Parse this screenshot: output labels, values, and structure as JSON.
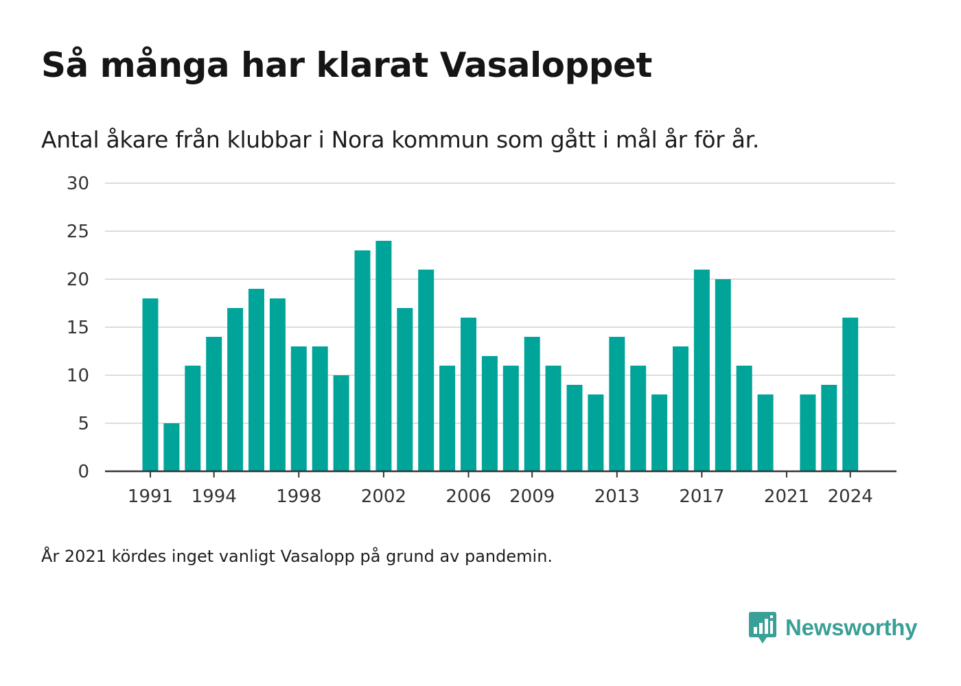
{
  "header": {
    "title": "Så många har klarat Vasaloppet",
    "subtitle": "Antal åkare från klubbar i Nora kommun som gått i mål år för år."
  },
  "footer": {
    "note": "År 2021 kördes inget vanligt Vasalopp på grund av pandemin.",
    "brand": "Newsworthy",
    "brand_icon": "bar-chart-speech-bubble-icon"
  },
  "colors": {
    "bar": "#00a499",
    "grid": "#dddddd",
    "axis": "#333333",
    "brand": "#3a9f97"
  },
  "chart_data": {
    "type": "bar",
    "categories": [
      1991,
      1992,
      1993,
      1994,
      1995,
      1996,
      1997,
      1998,
      1999,
      2000,
      2001,
      2002,
      2003,
      2004,
      2005,
      2006,
      2007,
      2008,
      2009,
      2010,
      2011,
      2012,
      2013,
      2014,
      2015,
      2016,
      2017,
      2018,
      2019,
      2020,
      2021,
      2022,
      2023,
      2024
    ],
    "values": [
      18,
      5,
      11,
      14,
      17,
      19,
      18,
      13,
      13,
      10,
      23,
      24,
      17,
      21,
      11,
      16,
      12,
      11,
      14,
      11,
      9,
      8,
      14,
      11,
      8,
      13,
      21,
      20,
      11,
      8,
      null,
      8,
      9,
      16
    ],
    "x_tick_labels": [
      "1991",
      "1994",
      "1998",
      "2002",
      "2006",
      "2009",
      "2013",
      "2017",
      "2021",
      "2024"
    ],
    "y_ticks": [
      0,
      5,
      10,
      15,
      20,
      25,
      30
    ],
    "ylim": [
      0,
      30
    ],
    "grid": true,
    "legend": "none"
  }
}
